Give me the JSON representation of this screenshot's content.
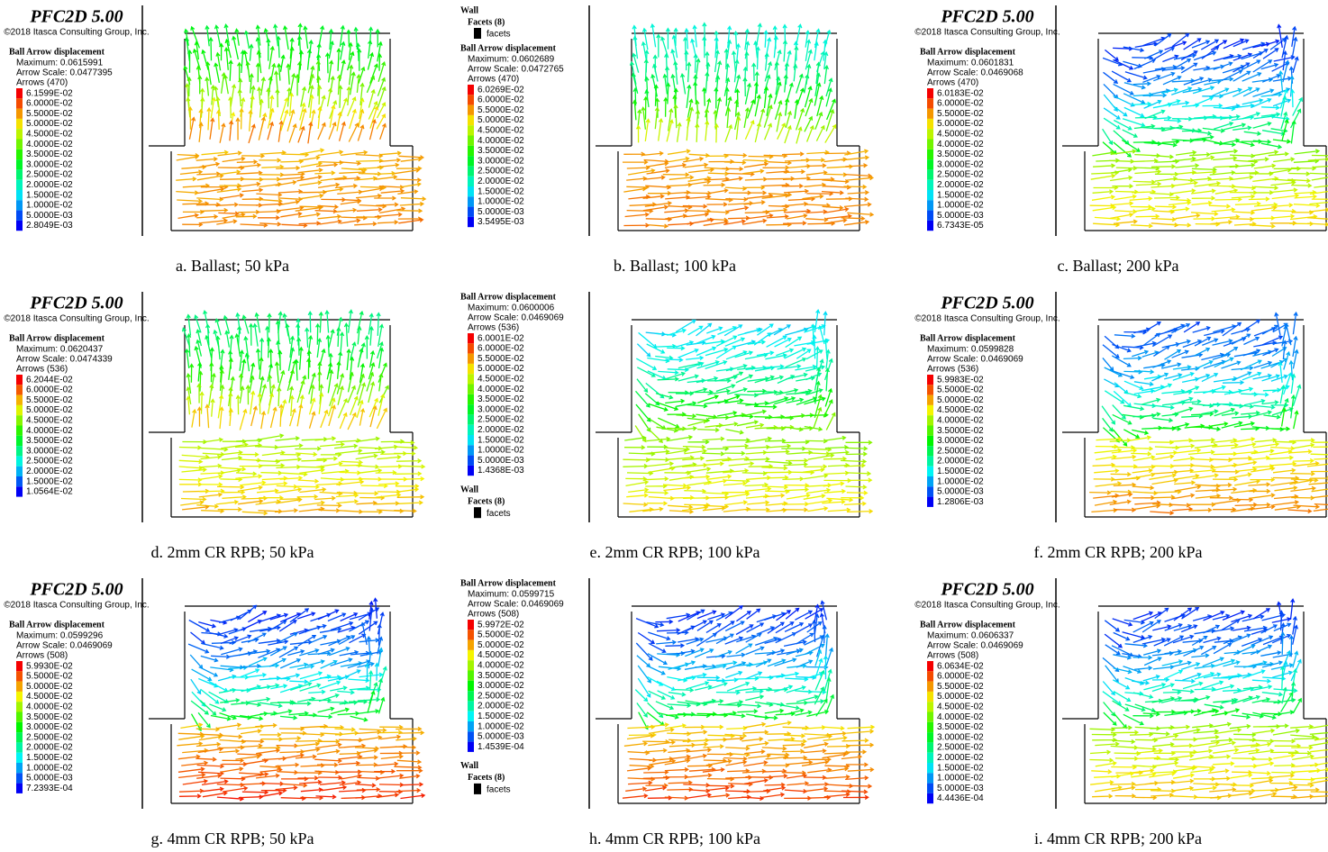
{
  "panels": [
    {
      "blocks": [
        {
          "title": "PFC2D 5.00",
          "copyright": "©2018 Itasca Consulting Group, Inc."
        },
        {
          "heading": "Ball Arrow displacement",
          "maximum": "Maximum: 0.0615991",
          "arrow_scale": "Arrow Scale: 0.0477395",
          "arrows": "Arrows (470)",
          "levels": [
            "6.1599E-02",
            "6.0000E-02",
            "5.5000E-02",
            "5.0000E-02",
            "4.5000E-02",
            "4.0000E-02",
            "3.5000E-02",
            "3.0000E-02",
            "2.5000E-02",
            "2.0000E-02",
            "1.5000E-02",
            "1.0000E-02",
            "5.0000E-03",
            "2.8049E-03"
          ]
        }
      ],
      "caption": "a. Ballast; 50 kPa"
    },
    {
      "blocks": [
        {
          "wall": "Wall",
          "facets": "Facets (8)",
          "key": "facets"
        },
        {
          "heading": "Ball Arrow displacement",
          "maximum": "Maximum: 0.0602689",
          "arrow_scale": "Arrow Scale: 0.0472765",
          "arrows": "Arrows (470)",
          "levels": [
            "6.0269E-02",
            "6.0000E-02",
            "5.5000E-02",
            "5.0000E-02",
            "4.5000E-02",
            "4.0000E-02",
            "3.5000E-02",
            "3.0000E-02",
            "2.5000E-02",
            "2.0000E-02",
            "1.5000E-02",
            "1.0000E-02",
            "5.0000E-03",
            "3.5495E-03"
          ]
        }
      ],
      "caption": "b. Ballast; 100 kPa"
    },
    {
      "blocks": [
        {
          "title": "PFC2D 5.00",
          "copyright": "©2018 Itasca Consulting Group, Inc."
        },
        {
          "heading": "Ball Arrow displacement",
          "maximum": "Maximum: 0.0601831",
          "arrow_scale": "Arrow Scale: 0.0469068",
          "arrows": "Arrows (470)",
          "levels": [
            "6.0183E-02",
            "6.0000E-02",
            "5.5000E-02",
            "5.0000E-02",
            "4.5000E-02",
            "4.0000E-02",
            "3.5000E-02",
            "3.0000E-02",
            "2.5000E-02",
            "2.0000E-02",
            "1.5000E-02",
            "1.0000E-02",
            "5.0000E-03",
            "6.7343E-05"
          ]
        }
      ],
      "caption": "c. Ballast; 200 kPa"
    },
    {
      "blocks": [
        {
          "title": "PFC2D 5.00",
          "copyright": "©2018 Itasca Consulting Group, Inc."
        },
        {
          "heading": "Ball Arrow displacement",
          "maximum": "Maximum: 0.0620437",
          "arrow_scale": "Arrow Scale: 0.0474339",
          "arrows": "Arrows (536)",
          "levels": [
            "6.2044E-02",
            "6.0000E-02",
            "5.5000E-02",
            "5.0000E-02",
            "4.5000E-02",
            "4.0000E-02",
            "3.5000E-02",
            "3.0000E-02",
            "2.5000E-02",
            "2.0000E-02",
            "1.5000E-02",
            "1.0564E-02"
          ]
        }
      ],
      "caption": "d. 2mm CR RPB; 50 kPa"
    },
    {
      "blocks": [
        {
          "heading": "Ball Arrow displacement",
          "maximum": "Maximum: 0.0600006",
          "arrow_scale": "Arrow Scale: 0.0469069",
          "arrows": "Arrows (536)",
          "levels": [
            "6.0001E-02",
            "6.0000E-02",
            "5.5000E-02",
            "5.0000E-02",
            "4.5000E-02",
            "4.0000E-02",
            "3.5000E-02",
            "3.0000E-02",
            "2.5000E-02",
            "2.0000E-02",
            "1.5000E-02",
            "1.0000E-02",
            "5.0000E-03",
            "1.4368E-03"
          ]
        },
        {
          "wall": "Wall",
          "facets": "Facets (8)",
          "key": "facets"
        }
      ],
      "caption": "e. 2mm CR RPB; 100 kPa"
    },
    {
      "blocks": [
        {
          "title": "PFC2D 5.00",
          "copyright": "©2018 Itasca Consulting Group, Inc."
        },
        {
          "heading": "Ball Arrow displacement",
          "maximum": "Maximum: 0.0599828",
          "arrow_scale": "Arrow Scale: 0.0469069",
          "arrows": "Arrows (536)",
          "levels": [
            "5.9983E-02",
            "5.5000E-02",
            "5.0000E-02",
            "4.5000E-02",
            "4.0000E-02",
            "3.5000E-02",
            "3.0000E-02",
            "2.5000E-02",
            "2.0000E-02",
            "1.5000E-02",
            "1.0000E-02",
            "5.0000E-03",
            "1.2806E-03"
          ]
        }
      ],
      "caption": "f. 2mm CR RPB; 200 kPa"
    },
    {
      "blocks": [
        {
          "title": "PFC2D 5.00",
          "copyright": "©2018 Itasca Consulting Group, Inc."
        },
        {
          "heading": "Ball Arrow displacement",
          "maximum": "Maximum: 0.0599296",
          "arrow_scale": "Arrow Scale: 0.0469069",
          "arrows": "Arrows (508)",
          "levels": [
            "5.9930E-02",
            "5.5000E-02",
            "5.0000E-02",
            "4.5000E-02",
            "4.0000E-02",
            "3.5000E-02",
            "3.0000E-02",
            "2.5000E-02",
            "2.0000E-02",
            "1.5000E-02",
            "1.0000E-02",
            "5.0000E-03",
            "7.2393E-04"
          ]
        }
      ],
      "caption": "g. 4mm CR RPB; 50 kPa"
    },
    {
      "blocks": [
        {
          "heading": "Ball Arrow displacement",
          "maximum": "Maximum: 0.0599715",
          "arrow_scale": "Arrow Scale: 0.0469069",
          "arrows": "Arrows (508)",
          "levels": [
            "5.9972E-02",
            "5.5000E-02",
            "5.0000E-02",
            "4.5000E-02",
            "4.0000E-02",
            "3.5000E-02",
            "3.0000E-02",
            "2.5000E-02",
            "2.0000E-02",
            "1.5000E-02",
            "1.0000E-02",
            "5.0000E-03",
            "1.4539E-04"
          ]
        },
        {
          "wall": "Wall",
          "facets": "Facets (8)",
          "key": "facets"
        }
      ],
      "caption": "h. 4mm CR RPB; 100 kPa"
    },
    {
      "blocks": [
        {
          "title": "PFC2D 5.00",
          "copyright": "©2018 Itasca Consulting Group, Inc."
        },
        {
          "heading": "Ball Arrow displacement",
          "maximum": "Maximum: 0.0606337",
          "arrow_scale": "Arrow Scale: 0.0469069",
          "arrows": "Arrows (508)",
          "levels": [
            "6.0634E-02",
            "6.0000E-02",
            "5.5000E-02",
            "5.0000E-02",
            "4.5000E-02",
            "4.0000E-02",
            "3.5000E-02",
            "3.0000E-02",
            "2.5000E-02",
            "2.0000E-02",
            "1.5000E-02",
            "1.0000E-02",
            "5.0000E-03",
            "4.4436E-04"
          ]
        }
      ],
      "caption": "i. 4mm CR RPB; 200 kPa"
    }
  ]
}
